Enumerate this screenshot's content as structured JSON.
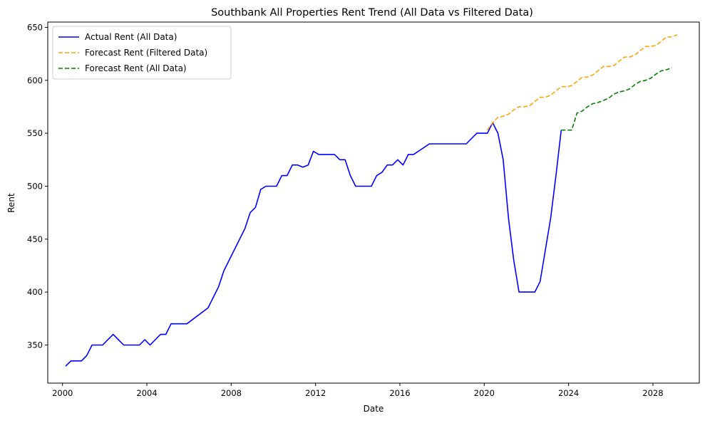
{
  "chart_data": {
    "type": "line",
    "title": "Southbank All Properties Rent Trend (All Data vs Filtered Data)",
    "xlabel": "Date",
    "ylabel": "Rent",
    "xlim": [
      1999.3,
      2030.2
    ],
    "ylim": [
      314,
      655
    ],
    "x_ticks": [
      2000,
      2004,
      2008,
      2012,
      2016,
      2020,
      2024,
      2028
    ],
    "y_ticks": [
      350,
      400,
      450,
      500,
      550,
      600,
      650
    ],
    "grid": false,
    "legend_position": "top-left",
    "series": [
      {
        "name": "Actual Rent (All Data)",
        "color": "#0000ff",
        "style": "solid",
        "points": [
          [
            2000.15,
            330
          ],
          [
            2000.4,
            335
          ],
          [
            2000.65,
            335
          ],
          [
            2000.9,
            335
          ],
          [
            2001.15,
            340
          ],
          [
            2001.4,
            350
          ],
          [
            2001.65,
            350
          ],
          [
            2001.9,
            350
          ],
          [
            2002.15,
            355
          ],
          [
            2002.4,
            360
          ],
          [
            2002.65,
            355
          ],
          [
            2002.9,
            350
          ],
          [
            2003.15,
            350
          ],
          [
            2003.4,
            350
          ],
          [
            2003.65,
            350
          ],
          [
            2003.9,
            355
          ],
          [
            2004.15,
            350
          ],
          [
            2004.4,
            355
          ],
          [
            2004.65,
            360
          ],
          [
            2004.9,
            360
          ],
          [
            2005.15,
            370
          ],
          [
            2005.4,
            370
          ],
          [
            2005.65,
            370
          ],
          [
            2005.9,
            370
          ],
          [
            2006.9,
            385
          ],
          [
            2007.15,
            395
          ],
          [
            2007.4,
            405
          ],
          [
            2007.65,
            420
          ],
          [
            2007.9,
            430
          ],
          [
            2008.4,
            450
          ],
          [
            2008.65,
            460
          ],
          [
            2008.9,
            475
          ],
          [
            2009.15,
            480
          ],
          [
            2009.4,
            497
          ],
          [
            2009.65,
            500
          ],
          [
            2009.9,
            500
          ],
          [
            2010.15,
            500
          ],
          [
            2010.4,
            510
          ],
          [
            2010.65,
            510
          ],
          [
            2010.9,
            520
          ],
          [
            2011.15,
            520
          ],
          [
            2011.4,
            518
          ],
          [
            2011.65,
            520
          ],
          [
            2011.9,
            533
          ],
          [
            2012.15,
            530
          ],
          [
            2012.4,
            530
          ],
          [
            2012.65,
            530
          ],
          [
            2012.9,
            530
          ],
          [
            2013.15,
            525
          ],
          [
            2013.4,
            525
          ],
          [
            2013.65,
            510
          ],
          [
            2013.9,
            500
          ],
          [
            2014.15,
            500
          ],
          [
            2014.4,
            500
          ],
          [
            2014.65,
            500
          ],
          [
            2014.9,
            510
          ],
          [
            2015.15,
            513
          ],
          [
            2015.4,
            520
          ],
          [
            2015.65,
            520
          ],
          [
            2015.9,
            525
          ],
          [
            2016.15,
            520
          ],
          [
            2016.4,
            530
          ],
          [
            2016.65,
            530
          ],
          [
            2017.4,
            540
          ],
          [
            2018.4,
            540
          ],
          [
            2019.15,
            540
          ],
          [
            2019.4,
            545
          ],
          [
            2019.65,
            550
          ],
          [
            2019.9,
            550
          ],
          [
            2020.15,
            550
          ],
          [
            2020.4,
            560
          ],
          [
            2020.65,
            550
          ],
          [
            2020.9,
            525
          ],
          [
            2021.15,
            470
          ],
          [
            2021.4,
            430
          ],
          [
            2021.65,
            400
          ],
          [
            2022.4,
            400
          ],
          [
            2022.65,
            410
          ],
          [
            2022.9,
            440
          ],
          [
            2023.15,
            470
          ],
          [
            2023.4,
            510
          ],
          [
            2023.65,
            553
          ]
        ]
      },
      {
        "name": "Forecast Rent (Filtered Data)",
        "color": "#ffa500",
        "style": "dashed",
        "points": [
          [
            2020.15,
            553
          ],
          [
            2020.4,
            560
          ],
          [
            2020.65,
            565
          ],
          [
            2020.9,
            566
          ],
          [
            2021.15,
            568
          ],
          [
            2021.4,
            572
          ],
          [
            2021.65,
            575
          ],
          [
            2021.9,
            575
          ],
          [
            2022.15,
            576
          ],
          [
            2022.4,
            580
          ],
          [
            2022.65,
            584
          ],
          [
            2022.9,
            584
          ],
          [
            2023.15,
            586
          ],
          [
            2023.4,
            590
          ],
          [
            2023.65,
            594
          ],
          [
            2023.9,
            594
          ],
          [
            2024.15,
            595
          ],
          [
            2024.4,
            599
          ],
          [
            2024.65,
            603
          ],
          [
            2024.9,
            603
          ],
          [
            2025.15,
            605
          ],
          [
            2025.4,
            609
          ],
          [
            2025.65,
            613
          ],
          [
            2025.9,
            613
          ],
          [
            2026.15,
            614
          ],
          [
            2026.4,
            618
          ],
          [
            2026.65,
            622
          ],
          [
            2026.9,
            622
          ],
          [
            2027.15,
            624
          ],
          [
            2027.4,
            628
          ],
          [
            2027.65,
            632
          ],
          [
            2027.9,
            632
          ],
          [
            2028.15,
            633
          ],
          [
            2028.4,
            637
          ],
          [
            2028.65,
            641
          ],
          [
            2028.9,
            641
          ],
          [
            2029.15,
            643
          ]
        ]
      },
      {
        "name": "Forecast Rent (All Data)",
        "color": "#008000",
        "style": "dashed",
        "points": [
          [
            2023.65,
            553
          ],
          [
            2023.9,
            553
          ],
          [
            2024.15,
            553
          ],
          [
            2024.4,
            569
          ],
          [
            2024.65,
            571
          ],
          [
            2024.9,
            575
          ],
          [
            2025.15,
            578
          ],
          [
            2025.4,
            579
          ],
          [
            2025.65,
            581
          ],
          [
            2025.9,
            583
          ],
          [
            2026.15,
            587
          ],
          [
            2026.4,
            589
          ],
          [
            2026.65,
            590
          ],
          [
            2026.9,
            592
          ],
          [
            2027.15,
            596
          ],
          [
            2027.4,
            599
          ],
          [
            2027.65,
            600
          ],
          [
            2027.9,
            602
          ],
          [
            2028.15,
            606
          ],
          [
            2028.4,
            609
          ],
          [
            2028.65,
            610
          ],
          [
            2028.9,
            612
          ]
        ]
      }
    ]
  }
}
